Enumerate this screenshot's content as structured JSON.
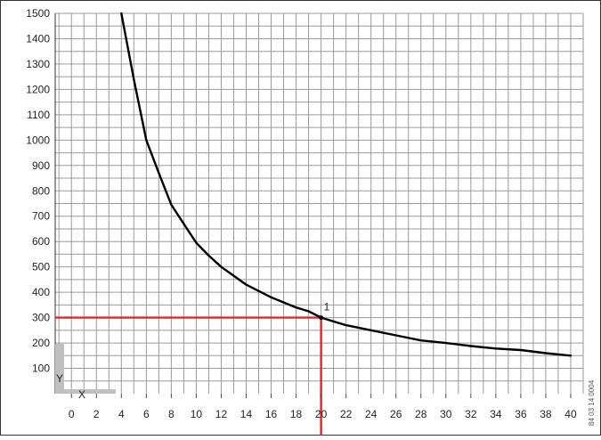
{
  "chart_data": {
    "type": "line",
    "x_ticks": [
      0,
      2,
      4,
      6,
      8,
      10,
      12,
      14,
      16,
      18,
      20,
      22,
      24,
      26,
      28,
      30,
      32,
      34,
      36,
      38,
      40
    ],
    "y_ticks": [
      100,
      200,
      300,
      400,
      500,
      600,
      700,
      800,
      900,
      1000,
      1100,
      1200,
      1300,
      1400,
      1500
    ],
    "xlim": [
      -1.3,
      41
    ],
    "ylim": [
      0,
      1500
    ],
    "grid": true,
    "series": [
      {
        "color": "#000000",
        "x": [
          4,
          5,
          6,
          7,
          8,
          9,
          10,
          11,
          12,
          13,
          14,
          15,
          16,
          17,
          18,
          19,
          20,
          22,
          24,
          26,
          28,
          30,
          32,
          34,
          36,
          38,
          40
        ],
        "y": [
          1500,
          1240,
          1000,
          870,
          745,
          670,
          595,
          545,
          500,
          465,
          430,
          405,
          380,
          360,
          340,
          325,
          300,
          270,
          250,
          230,
          210,
          200,
          188,
          178,
          172,
          160,
          150
        ]
      }
    ],
    "reference": {
      "x": 20,
      "y": 300,
      "label": "1",
      "color": "#e3262b"
    },
    "axis_indicator": {
      "x_label": "X",
      "y_label": "Y",
      "color": "#c0c0c0"
    },
    "side_code": "84 03 14 0004"
  }
}
